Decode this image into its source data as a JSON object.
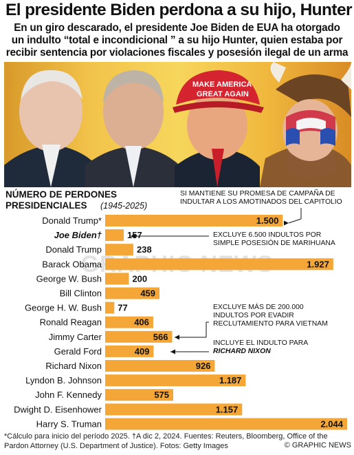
{
  "header": {
    "title": "El presidente Biden perdona a su hijo, Hunter",
    "subtitle_lines": [
      "En un giro descarado, el presidente Joe Biden de EUA ha otorgado",
      "un indulto “total e incondicional ” a su hijo Hunter, quien estaba por",
      "recibir sentencia por violaciones fiscales y posesión ilegal de un arma"
    ]
  },
  "colors": {
    "bar": "#f4a636",
    "text": "#111111"
  },
  "chart_data": {
    "type": "bar",
    "orientation": "horizontal",
    "title": "NÚMERO DE PERDONES PRESIDENCIALES",
    "subtitle": "(1945-2025)",
    "categories": [
      "Donald Trump*",
      "Joe Biden†",
      "Donald Trump",
      "Barack Obama",
      "George W. Bush",
      "Bill Clinton",
      "George H. W. Bush",
      "Ronald Reagan",
      "Jimmy Carter",
      "Gerald Ford",
      "Richard Nixon",
      "Lyndon B. Johnson",
      "John F. Kennedy",
      "Dwight D. Eisenhower",
      "Harry S. Truman"
    ],
    "values": [
      1500,
      157,
      238,
      1927,
      200,
      459,
      77,
      406,
      566,
      409,
      926,
      1187,
      575,
      1157,
      2044
    ],
    "value_labels": [
      "1.500",
      "157",
      "238",
      "1.927",
      "200",
      "459",
      "77",
      "406",
      "566",
      "409",
      "926",
      "1.187",
      "575",
      "1.157",
      "2.044"
    ],
    "highlight_category": "Joe Biden†",
    "annotations": {
      "trump_note": [
        "SI MANTIENE SU PROMESA DE CAMPAÑA DE",
        "INDULTAR A LOS AMOTINADOS DEL CAPITOLIO"
      ],
      "biden_note": [
        "EXCLUYE 6.500 INDULTOS POR",
        "SIMPLE POSESIÓN DE MARIHUANA"
      ],
      "carter_note": [
        "EXCLUYE MÁS DE 200.000",
        "INDULTOS POR  EVADIR",
        "RECLUTAMIENTO PARA VIETNAM"
      ],
      "ford_note": [
        "INCLUYE EL INDULTO PARA",
        "RICHARD NIXON"
      ]
    }
  },
  "footnote": {
    "text": "*Cálculo para inicio del período 2025. †A dic 2,  2024. Fuentes: Reuters, Bloomberg, Office of the Pardon Attorney (U.S. Department of Justice). Fotos: Getty Images",
    "credit": "© GRAPHIC NEWS"
  },
  "watermark": "GRAPHIC NEWS"
}
